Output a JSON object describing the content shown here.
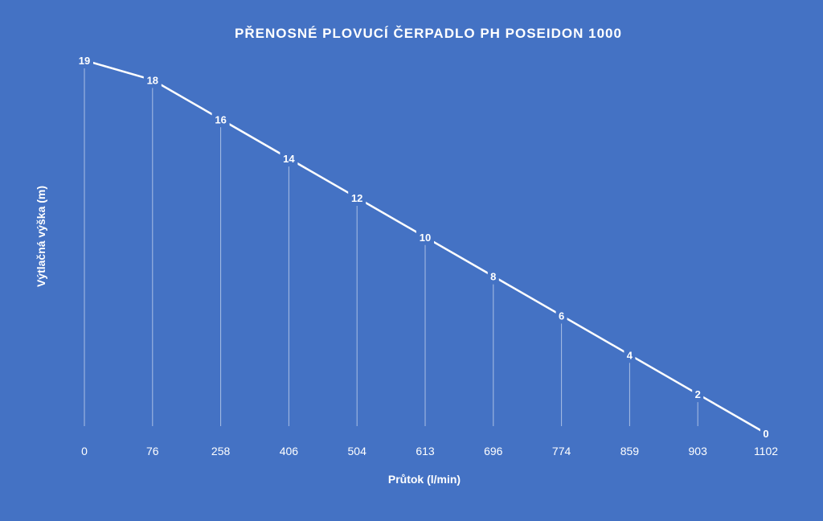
{
  "chart": {
    "title": "PŘENOSNÉ PLOVUCÍ ČERPADLO PH POSEIDON 1000",
    "x_axis_title": "Průtok (l/min)",
    "y_axis_title": "Výtlačná výška (m)"
  },
  "chart_data": {
    "type": "line",
    "title": "PŘENOSNÉ PLOVUCÍ ČERPADLO PH POSEIDON 1000",
    "xlabel": "Průtok (l/min)",
    "ylabel": "Výtlačná výška (m)",
    "categories": [
      "0",
      "76",
      "258",
      "406",
      "504",
      "613",
      "696",
      "774",
      "859",
      "903",
      "1102"
    ],
    "values": [
      19,
      18,
      16,
      14,
      12,
      10,
      8,
      6,
      4,
      2,
      0
    ],
    "ylim": [
      0,
      19
    ],
    "grid": false,
    "drop_lines": true,
    "data_labels": true,
    "legend": "none",
    "colors": {
      "background": "#4472c4",
      "line": "#ffffff",
      "text": "#ffffff"
    }
  }
}
